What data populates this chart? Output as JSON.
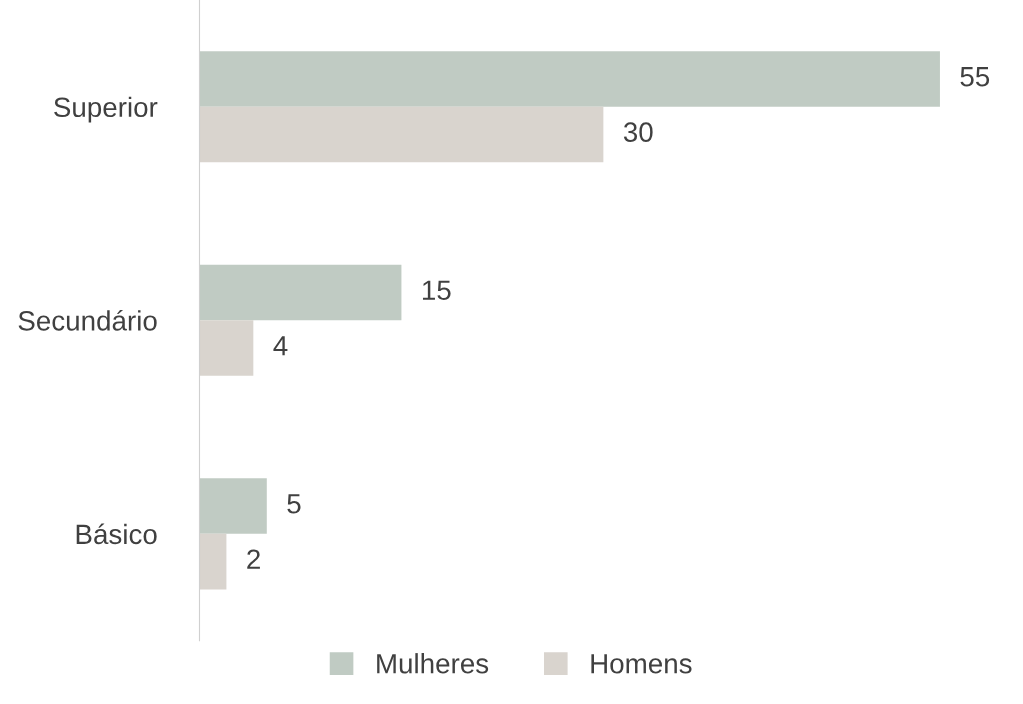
{
  "chart_data": {
    "type": "bar",
    "orientation": "horizontal",
    "categories": [
      "Superior",
      "Secundário",
      "Básico"
    ],
    "series": [
      {
        "name": "Mulheres",
        "color": "#c0cbc3",
        "values": [
          55,
          15,
          5
        ]
      },
      {
        "name": "Homens",
        "color": "#d9d4ce",
        "values": [
          30,
          4,
          2
        ]
      }
    ],
    "data_labels": true,
    "legend": "bottom",
    "grid": false
  }
}
